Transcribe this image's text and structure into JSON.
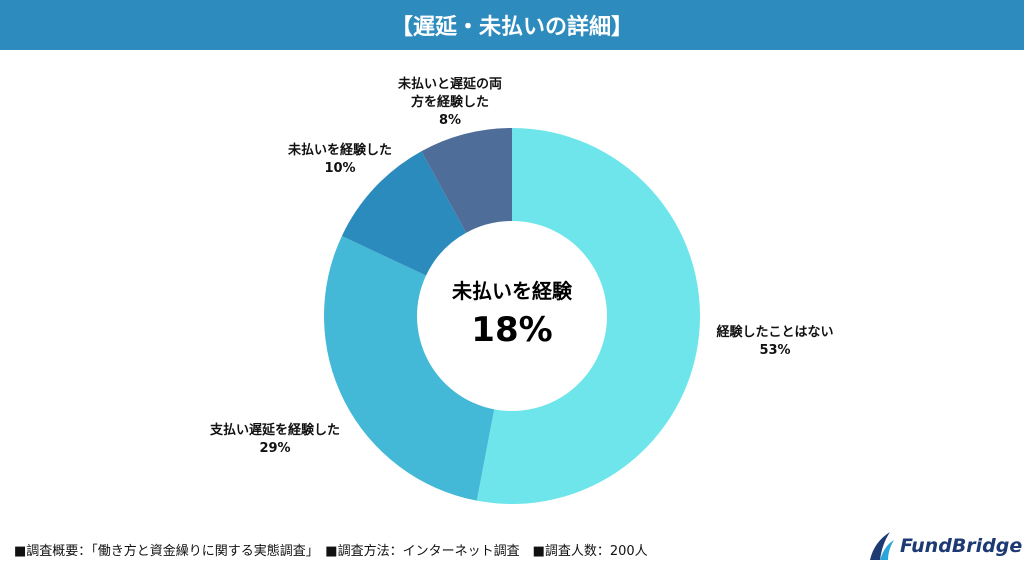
{
  "title": "【遅延・未払いの詳細】",
  "chart_data": {
    "type": "pie",
    "donut": true,
    "categories": [
      "経験したことはない",
      "支払い遅延を経験した",
      "未払いを経験した",
      "未払いと遅延の両方を経験した"
    ],
    "values": [
      53,
      29,
      10,
      8
    ],
    "value_labels": [
      "53%",
      "29%",
      "10%",
      "8%"
    ],
    "colors": [
      "#6de5ea",
      "#43b8d7",
      "#2b8bbd",
      "#4f6d99"
    ],
    "center_label": "未払いを経験",
    "center_value": "18%"
  },
  "labels": {
    "l0a": "経験したことはない",
    "l1a": "支払い遅延を経験した",
    "l2a": "未払いを経験した",
    "l3a": "未払いと遅延の両",
    "l3b": "方を経験した"
  },
  "footer": "■調査概要：「働き方と資金繰りに関する実態調査」　■調査方法：インターネット調査　■調査人数：200人",
  "logo": "FundBridge"
}
